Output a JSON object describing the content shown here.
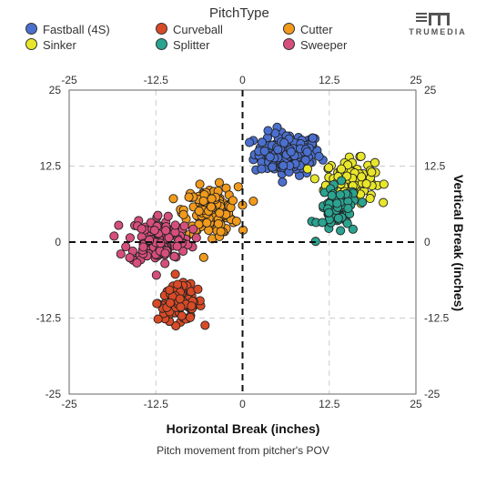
{
  "chart_data": {
    "type": "scatter",
    "legend_title": "PitchType",
    "legend_position": "top",
    "xlabel": "Horizontal Break (inches)",
    "ylabel": "Vertical Break (inches)",
    "caption": "Pitch movement from pitcher's POV",
    "xlim": [
      -25,
      25
    ],
    "ylim": [
      -25,
      25
    ],
    "x_ticks": [
      "-25",
      "-12.5",
      "0",
      "12.5",
      "25"
    ],
    "y_ticks": [
      "25",
      "12.5",
      "0",
      "-12.5",
      "-25"
    ],
    "grid": true,
    "reference_lines": "dashed lines at x=0 and y=0",
    "series": [
      {
        "name": "Fastball (4S)",
        "color": "#4a6fce",
        "center": [
          6.5,
          14.5
        ],
        "spread": [
          3.0,
          2.2
        ],
        "count": 150
      },
      {
        "name": "Sinker",
        "color": "#e8e62a",
        "center": [
          15.5,
          10.0
        ],
        "spread": [
          2.2,
          2.2
        ],
        "count": 130
      },
      {
        "name": "Curveball",
        "color": "#d94a26",
        "center": [
          -9.0,
          -10.0
        ],
        "spread": [
          2.0,
          1.8
        ],
        "count": 110
      },
      {
        "name": "Splitter",
        "color": "#2aa390",
        "center": [
          13.8,
          5.2
        ],
        "spread": [
          1.8,
          2.5
        ],
        "count": 70
      },
      {
        "name": "Cutter",
        "color": "#f19a1c",
        "center": [
          -4.5,
          5.2
        ],
        "spread": [
          2.4,
          2.4
        ],
        "count": 150
      },
      {
        "name": "Sweeper",
        "color": "#d64f7c",
        "center": [
          -12.0,
          0.5
        ],
        "spread": [
          2.8,
          2.6
        ],
        "count": 140
      }
    ]
  },
  "brand": {
    "name": "TRUMEDIA"
  }
}
